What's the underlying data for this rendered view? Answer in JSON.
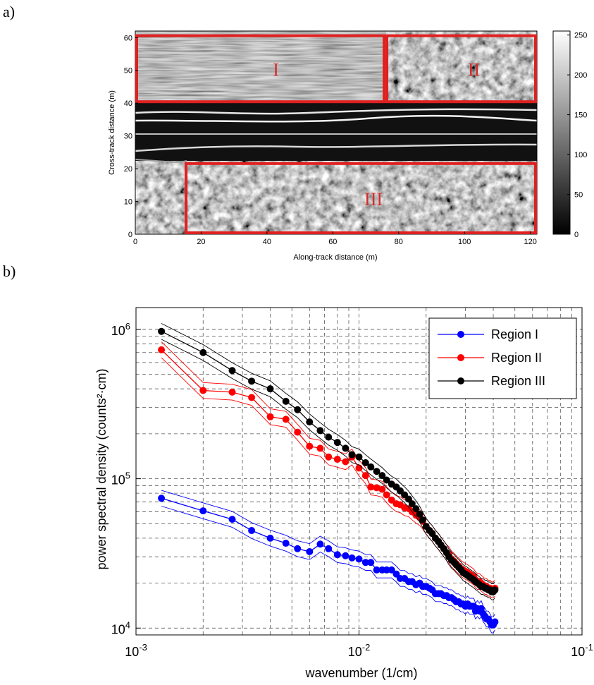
{
  "panels": {
    "a": "a)",
    "b": "b)"
  },
  "sonar": {
    "xlabel": "Along-track distance (m)",
    "ylabel": "Cross-track distance (m)",
    "xlim": [
      0,
      122
    ],
    "ylim": [
      0,
      62
    ],
    "xticks": [
      "0",
      "20",
      "40",
      "60",
      "80",
      "100",
      "120"
    ],
    "yticks": [
      "0",
      "10",
      "20",
      "30",
      "40",
      "50",
      "60"
    ],
    "colorbar_ticks": [
      "0",
      "50",
      "100",
      "150",
      "200",
      "250"
    ],
    "colorbar_range": [
      0,
      255
    ],
    "region_color": "#e02020",
    "regions": [
      {
        "label": "I",
        "x": [
          0,
          76
        ],
        "y": [
          40,
          61
        ]
      },
      {
        "label": "II",
        "x": [
          76,
          122
        ],
        "y": [
          40,
          61
        ]
      },
      {
        "label": "III",
        "x": [
          15,
          122
        ],
        "y": [
          0,
          22
        ]
      }
    ]
  },
  "chart_data": {
    "type": "line",
    "xlabel": "wavenumber (1/cm)",
    "ylabel": "power spectral density (counts²·cm)",
    "xscale": "log",
    "yscale": "log",
    "xlim": [
      0.001,
      0.1
    ],
    "ylim": [
      9000,
      1400000
    ],
    "xtick_labels": [
      {
        "base": "10",
        "exp": "-3",
        "value": 0.001
      },
      {
        "base": "10",
        "exp": "-2",
        "value": 0.01
      },
      {
        "base": "10",
        "exp": "-1",
        "value": 0.1
      }
    ],
    "ytick_labels": [
      {
        "base": "10",
        "exp": "4",
        "value": 10000
      },
      {
        "base": "10",
        "exp": "5",
        "value": 100000
      },
      {
        "base": "10",
        "exp": "6",
        "value": 1000000
      }
    ],
    "grid": true,
    "legend_position": "top-right",
    "series": [
      {
        "name": "Region I",
        "color": "#0000ff",
        "x": [
          0.0013,
          0.002,
          0.0027,
          0.0033,
          0.004,
          0.0047,
          0.0053,
          0.006,
          0.0067,
          0.0073,
          0.008,
          0.0087,
          0.0093,
          0.01,
          0.0107,
          0.0113,
          0.012,
          0.0127,
          0.0133,
          0.014,
          0.0147,
          0.0153,
          0.016,
          0.0167,
          0.0173,
          0.018,
          0.0187,
          0.0193,
          0.02,
          0.0207,
          0.0213,
          0.022,
          0.0227,
          0.0233,
          0.024,
          0.0247,
          0.0253,
          0.026,
          0.0267,
          0.0273,
          0.028,
          0.0287,
          0.0293,
          0.03,
          0.0307,
          0.0313,
          0.032,
          0.0327,
          0.0333,
          0.034,
          0.0347,
          0.0353,
          0.036,
          0.0367,
          0.0373,
          0.038,
          0.0387,
          0.0393,
          0.04,
          0.0407
        ],
        "y": [
          74000,
          61000,
          53500,
          45000,
          40000,
          37000,
          34000,
          32500,
          36500,
          34000,
          31000,
          30500,
          29500,
          29000,
          27500,
          27500,
          24500,
          24500,
          24500,
          24500,
          23000,
          21500,
          21500,
          20500,
          20500,
          19500,
          20000,
          19000,
          19000,
          18500,
          18000,
          17000,
          17000,
          17000,
          16500,
          16500,
          16000,
          16000,
          15500,
          15000,
          15000,
          14500,
          14500,
          14000,
          14500,
          14000,
          14000,
          14000,
          13000,
          13500,
          13000,
          13500,
          12500,
          12000,
          11500,
          11500,
          11000,
          10500,
          10500,
          11000
        ]
      },
      {
        "name": "Region II",
        "color": "#ff0000",
        "x": [
          0.0013,
          0.002,
          0.0027,
          0.0033,
          0.004,
          0.0047,
          0.0053,
          0.006,
          0.0067,
          0.0073,
          0.008,
          0.0087,
          0.0093,
          0.01,
          0.0107,
          0.0113,
          0.012,
          0.0127,
          0.0133,
          0.014,
          0.0147,
          0.0153,
          0.016,
          0.0167,
          0.0173,
          0.018,
          0.0187,
          0.0193,
          0.02,
          0.0207,
          0.0213,
          0.022,
          0.0227,
          0.0233,
          0.024,
          0.0247,
          0.0253,
          0.026,
          0.0267,
          0.0273,
          0.028,
          0.0287,
          0.0293,
          0.03,
          0.0307,
          0.0313,
          0.032,
          0.0327,
          0.0333,
          0.034,
          0.0347,
          0.0353,
          0.036,
          0.0367,
          0.0373,
          0.038,
          0.0387,
          0.0393,
          0.04,
          0.0407
        ],
        "y": [
          730000,
          390000,
          380000,
          350000,
          260000,
          250000,
          205000,
          165000,
          160000,
          140000,
          135000,
          130000,
          140000,
          118000,
          105000,
          88000,
          87000,
          85000,
          78000,
          72000,
          68000,
          67000,
          64000,
          63000,
          60000,
          57000,
          55000,
          52000,
          48000,
          45000,
          43000,
          40000,
          38000,
          36000,
          34000,
          32000,
          31000,
          29000,
          28000,
          27000,
          26000,
          25000,
          24500,
          24000,
          23500,
          23000,
          22500,
          22000,
          21000,
          20500,
          20500,
          20000,
          19500,
          19000,
          19000,
          18500,
          18500,
          18000,
          18000,
          18500
        ]
      },
      {
        "name": "Region III",
        "color": "#000000",
        "x": [
          0.0013,
          0.002,
          0.0027,
          0.0033,
          0.004,
          0.0047,
          0.0053,
          0.006,
          0.0067,
          0.0073,
          0.008,
          0.0087,
          0.0093,
          0.01,
          0.0107,
          0.0113,
          0.012,
          0.0127,
          0.0133,
          0.014,
          0.0147,
          0.0153,
          0.016,
          0.0167,
          0.0173,
          0.018,
          0.0187,
          0.0193,
          0.02,
          0.0207,
          0.0213,
          0.022,
          0.0227,
          0.0233,
          0.024,
          0.0247,
          0.0253,
          0.026,
          0.0267,
          0.0273,
          0.028,
          0.0287,
          0.0293,
          0.03,
          0.0307,
          0.0313,
          0.032,
          0.0327,
          0.0333,
          0.034,
          0.0347,
          0.0353,
          0.036,
          0.0367,
          0.0373,
          0.038,
          0.0387,
          0.0393,
          0.04,
          0.0407
        ],
        "y": [
          970000,
          700000,
          530000,
          450000,
          400000,
          330000,
          290000,
          240000,
          210000,
          190000,
          175000,
          160000,
          145000,
          140000,
          128000,
          120000,
          112000,
          105000,
          98000,
          92000,
          88000,
          83000,
          78000,
          73000,
          68000,
          63000,
          58000,
          53000,
          48000,
          45000,
          43000,
          40000,
          38000,
          36000,
          34000,
          32000,
          30000,
          28500,
          27500,
          26500,
          25500,
          24500,
          23500,
          23000,
          22500,
          22000,
          21500,
          21000,
          20500,
          20000,
          19500,
          19000,
          19000,
          18500,
          18500,
          18000,
          18000,
          17500,
          17500,
          18000
        ]
      }
    ]
  }
}
